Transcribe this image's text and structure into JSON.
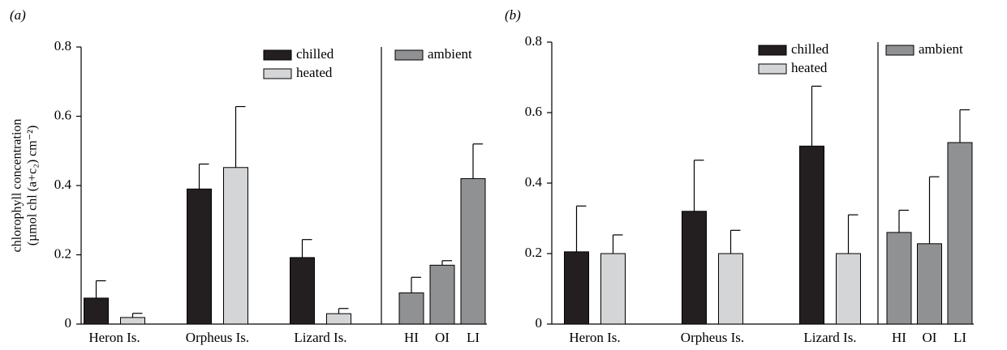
{
  "chart_data": [
    {
      "type": "bar",
      "panel_label": "(a)",
      "ylabel": [
        "chlorophyll concentration",
        "(µmol chl (a+c₂) cm⁻²)"
      ],
      "categories": [
        "Heron Is.",
        "Orpheus Is.",
        "Lizard Is.",
        "HI",
        "OI",
        "LI"
      ],
      "series": [
        {
          "name": "chilled",
          "color": "#231f20",
          "values": [
            0.075,
            0.39,
            0.192,
            null,
            null,
            null
          ],
          "errors": [
            0.05,
            0.072,
            0.052,
            null,
            null,
            null
          ]
        },
        {
          "name": "heated",
          "color": "#d4d5d6",
          "values": [
            0.019,
            0.452,
            0.03,
            null,
            null,
            null
          ],
          "errors": [
            0.012,
            0.176,
            0.015,
            null,
            null,
            null
          ]
        },
        {
          "name": "ambient",
          "color": "#8f9193",
          "values": [
            null,
            null,
            null,
            0.09,
            0.17,
            0.42
          ],
          "errors": [
            null,
            null,
            null,
            0.045,
            0.013,
            0.1
          ]
        }
      ],
      "ylim": [
        0,
        0.8
      ],
      "yticks": [
        0,
        0.2,
        0.4,
        0.6,
        0.8
      ]
    },
    {
      "type": "bar",
      "panel_label": "(b)",
      "categories": [
        "Heron Is.",
        "Orpheus Is.",
        "Lizard Is.",
        "HI",
        "OI",
        "LI"
      ],
      "series": [
        {
          "name": "chilled",
          "color": "#231f20",
          "values": [
            0.205,
            0.32,
            0.505,
            null,
            null,
            null
          ],
          "errors": [
            0.13,
            0.145,
            0.17,
            null,
            null,
            null
          ]
        },
        {
          "name": "heated",
          "color": "#d4d5d6",
          "values": [
            0.2,
            0.2,
            0.2,
            null,
            null,
            null
          ],
          "errors": [
            0.053,
            0.066,
            0.11,
            null,
            null,
            null
          ]
        },
        {
          "name": "ambient",
          "color": "#8f9193",
          "values": [
            null,
            null,
            null,
            0.26,
            0.228,
            0.515
          ],
          "errors": [
            null,
            null,
            null,
            0.063,
            0.19,
            0.093
          ]
        }
      ],
      "ylim": [
        0,
        0.8
      ],
      "yticks": [
        0,
        0.2,
        0.4,
        0.6,
        0.8
      ]
    }
  ]
}
